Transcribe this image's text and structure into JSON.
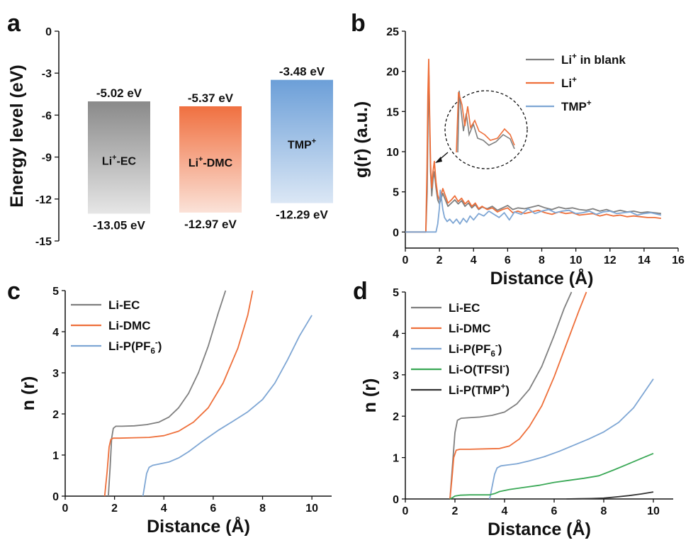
{
  "colors": {
    "gray": "#7f7f7f",
    "orange": "#ee6f3a",
    "blue": "#7ea6d4",
    "green": "#3aa856",
    "black": "#333333",
    "bar_gray": "#8a8a8a",
    "bar_orange": "#f07040",
    "bar_blue": "#6c9fd8"
  },
  "chart_data": [
    {
      "panel": "a",
      "type": "bar",
      "title": "",
      "ylabel": "Energy level (eV)",
      "ylim": [
        -15,
        0
      ],
      "yticks": [
        0,
        -3,
        -6,
        -9,
        -12,
        -15
      ],
      "ytick_labels": [
        "0",
        "-3",
        "-6",
        "-9",
        "-12",
        "-15"
      ],
      "bars": [
        {
          "name": "Li⁺-EC",
          "name_base": "Li",
          "name_sup": "+",
          "name_rest": "-EC",
          "top": -5.02,
          "bottom": -13.05,
          "top_label": "-5.02 eV",
          "bottom_label": "-13.05 eV",
          "color_key": "bar_gray"
        },
        {
          "name": "Li⁺-DMC",
          "name_base": "Li",
          "name_sup": "+",
          "name_rest": "-DMC",
          "top": -5.37,
          "bottom": -12.97,
          "top_label": "-5.37 eV",
          "bottom_label": "-12.97 eV",
          "color_key": "bar_orange"
        },
        {
          "name": "TMP⁺",
          "name_base": "TMP",
          "name_sup": "+",
          "name_rest": "",
          "top": -3.48,
          "bottom": -12.29,
          "top_label": "-3.48 eV",
          "bottom_label": "-12.29 eV",
          "color_key": "bar_blue"
        }
      ]
    },
    {
      "panel": "b",
      "type": "line",
      "xlabel": "Distance (Å)",
      "ylabel": "g(r) (a.u.)",
      "xlim": [
        0,
        16
      ],
      "ylim": [
        -2,
        25
      ],
      "xticks": [
        0,
        2,
        4,
        6,
        8,
        10,
        12,
        14,
        16
      ],
      "xtick_labels": [
        "0",
        "2",
        "4",
        "6",
        "8",
        "10",
        "12",
        "14",
        "16"
      ],
      "yticks": [
        0,
        5,
        10,
        15,
        20,
        25
      ],
      "ytick_labels": [
        "0",
        "5",
        "10",
        "15",
        "20",
        "25"
      ],
      "annotation": "zoom inset (dashed circle) of first-shell peaks",
      "series": [
        {
          "name": "Li⁺ in blank",
          "legend_base": "Li",
          "legend_sup": "+",
          "legend_rest": " in blank",
          "color_key": "gray",
          "x": [
            0,
            1.2,
            1.28,
            1.33,
            1.38,
            1.42,
            1.48,
            1.55,
            1.62,
            1.7,
            1.8,
            1.9,
            2.0,
            2.1,
            2.2,
            2.35,
            2.5,
            2.7,
            2.9,
            3.1,
            3.3,
            3.5,
            3.7,
            3.9,
            4.1,
            4.3,
            4.5,
            4.8,
            5.1,
            5.4,
            5.7,
            6.0,
            6.3,
            6.6,
            7.0,
            7.4,
            7.8,
            8.2,
            8.6,
            9.0,
            9.4,
            9.8,
            10.2,
            10.6,
            11.0,
            11.4,
            11.8,
            12.2,
            12.6,
            13.0,
            13.4,
            13.8,
            14.2,
            14.6,
            15.0
          ],
          "y": [
            0,
            0,
            5,
            14,
            19.5,
            14,
            7.5,
            4.5,
            6.5,
            7.5,
            5.5,
            4.0,
            3.5,
            4.2,
            4.8,
            4.0,
            3.2,
            3.6,
            4.0,
            3.5,
            3.9,
            3.2,
            3.6,
            3.0,
            3.4,
            2.8,
            3.1,
            2.9,
            3.2,
            2.7,
            3.0,
            3.3,
            2.8,
            3.0,
            2.9,
            3.1,
            3.3,
            3.0,
            2.8,
            3.1,
            2.9,
            3.0,
            2.8,
            2.7,
            2.9,
            2.6,
            2.8,
            2.5,
            2.7,
            2.5,
            2.6,
            2.4,
            2.5,
            2.4,
            2.3
          ]
        },
        {
          "name": "Li⁺",
          "legend_base": "Li",
          "legend_sup": "+",
          "legend_rest": "",
          "color_key": "orange",
          "x": [
            0,
            1.2,
            1.27,
            1.32,
            1.37,
            1.42,
            1.48,
            1.55,
            1.62,
            1.7,
            1.8,
            1.9,
            2.0,
            2.1,
            2.2,
            2.35,
            2.5,
            2.7,
            2.9,
            3.1,
            3.3,
            3.5,
            3.7,
            3.9,
            4.1,
            4.3,
            4.5,
            4.8,
            5.1,
            5.4,
            5.7,
            6.0,
            6.3,
            6.6,
            7.0,
            7.4,
            7.8,
            8.2,
            8.6,
            9.0,
            9.4,
            9.8,
            10.2,
            10.6,
            11.0,
            11.4,
            11.8,
            12.2,
            12.6,
            13.0,
            13.4,
            13.8,
            14.2,
            14.6,
            15.0
          ],
          "y": [
            0,
            0,
            8,
            17,
            21.5,
            15,
            8.5,
            5.5,
            7.5,
            8.8,
            6.2,
            4.6,
            4.0,
            4.6,
            5.4,
            4.5,
            3.6,
            4.0,
            4.5,
            3.8,
            4.2,
            3.5,
            3.9,
            3.2,
            3.6,
            2.9,
            3.2,
            2.8,
            3.0,
            2.5,
            2.8,
            3.0,
            2.4,
            2.6,
            2.3,
            2.5,
            2.7,
            2.4,
            2.2,
            2.5,
            2.3,
            2.4,
            2.1,
            2.2,
            2.3,
            2.0,
            2.2,
            2.0,
            2.1,
            1.9,
            2.0,
            1.9,
            1.8,
            1.8,
            1.7
          ]
        },
        {
          "name": "TMP⁺",
          "legend_base": "TMP",
          "legend_sup": "+",
          "legend_rest": "",
          "color_key": "blue",
          "x": [
            0,
            1.8,
            1.9,
            2.0,
            2.05,
            2.1,
            2.2,
            2.3,
            2.45,
            2.6,
            2.8,
            3.0,
            3.2,
            3.4,
            3.6,
            3.8,
            4.0,
            4.3,
            4.6,
            4.9,
            5.2,
            5.5,
            5.8,
            6.1,
            6.4,
            6.8,
            7.2,
            7.6,
            8.0,
            8.4,
            8.8,
            9.2,
            9.6,
            10.0,
            10.4,
            10.8,
            11.2,
            11.6,
            12.0,
            12.4,
            12.8,
            13.2,
            13.6,
            14.0,
            14.4,
            14.8,
            15.0
          ],
          "y": [
            0,
            0,
            1.0,
            3.0,
            5.2,
            4.5,
            2.8,
            1.8,
            1.3,
            1.6,
            1.1,
            1.6,
            1.0,
            1.7,
            1.2,
            2.0,
            1.5,
            2.3,
            2.0,
            2.6,
            2.2,
            1.8,
            2.4,
            1.5,
            2.5,
            2.2,
            2.9,
            2.3,
            2.6,
            2.8,
            2.4,
            2.6,
            2.7,
            2.3,
            2.4,
            2.6,
            2.2,
            2.5,
            2.6,
            2.3,
            2.4,
            2.5,
            2.1,
            2.3,
            2.4,
            2.2,
            2.1
          ]
        }
      ]
    },
    {
      "panel": "c",
      "type": "line",
      "xlabel": "Distance (Å)",
      "ylabel": "n (r)",
      "xlim": [
        0,
        10.8
      ],
      "ylim": [
        0,
        5
      ],
      "xticks": [
        0,
        2,
        4,
        6,
        8,
        10
      ],
      "xtick_labels": [
        "0",
        "2",
        "4",
        "6",
        "8",
        "10"
      ],
      "yticks": [
        0,
        1,
        2,
        3,
        4,
        5
      ],
      "ytick_labels": [
        "0",
        "1",
        "2",
        "3",
        "4",
        "5"
      ],
      "series": [
        {
          "name": "Li-EC",
          "legend_base": "Li-EC",
          "legend_sup": "",
          "legend_rest": "",
          "color_key": "gray",
          "x": [
            1.75,
            1.82,
            1.88,
            1.95,
            2.05,
            2.3,
            2.8,
            3.3,
            3.8,
            4.2,
            4.6,
            5.0,
            5.4,
            5.8,
            6.2,
            6.5
          ],
          "y": [
            0,
            0.7,
            1.4,
            1.65,
            1.7,
            1.7,
            1.71,
            1.74,
            1.8,
            1.92,
            2.15,
            2.5,
            3.0,
            3.65,
            4.45,
            5.0
          ]
        },
        {
          "name": "Li-DMC",
          "legend_base": "Li-DMC",
          "legend_sup": "",
          "legend_rest": "",
          "color_key": "orange",
          "x": [
            1.6,
            1.7,
            1.78,
            1.85,
            1.95,
            2.2,
            2.8,
            3.4,
            4.0,
            4.6,
            5.2,
            5.8,
            6.4,
            7.0,
            7.4,
            7.6
          ],
          "y": [
            0,
            0.6,
            1.2,
            1.38,
            1.41,
            1.41,
            1.42,
            1.43,
            1.47,
            1.58,
            1.8,
            2.15,
            2.75,
            3.6,
            4.4,
            5.0
          ]
        },
        {
          "name": "Li-P(PF₆⁻)",
          "legend_base": "Li-P(PF",
          "legend_sub": "6",
          "legend_sup": "-",
          "legend_rest": ")",
          "color_key": "blue",
          "x": [
            3.15,
            3.22,
            3.3,
            3.4,
            3.55,
            3.8,
            4.2,
            4.6,
            5.0,
            5.6,
            6.2,
            6.8,
            7.4,
            8.0,
            8.5,
            9.0,
            9.5,
            10.0
          ],
          "y": [
            0,
            0.25,
            0.55,
            0.7,
            0.75,
            0.78,
            0.83,
            0.93,
            1.08,
            1.35,
            1.6,
            1.82,
            2.05,
            2.35,
            2.75,
            3.3,
            3.9,
            4.4
          ]
        }
      ]
    },
    {
      "panel": "d",
      "type": "line",
      "xlabel": "Distance (Å)",
      "ylabel": "n (r)",
      "xlim": [
        0,
        10.8
      ],
      "ylim": [
        0,
        5
      ],
      "xticks": [
        0,
        2,
        4,
        6,
        8,
        10
      ],
      "xtick_labels": [
        "0",
        "2",
        "4",
        "6",
        "8",
        "10"
      ],
      "yticks": [
        0,
        1,
        2,
        3,
        4,
        5
      ],
      "ytick_labels": [
        "0",
        "1",
        "2",
        "3",
        "4",
        "5"
      ],
      "series": [
        {
          "name": "Li-EC",
          "legend_base": "Li-EC",
          "legend_sup": "",
          "legend_rest": "",
          "color_key": "gray",
          "x": [
            1.8,
            1.9,
            2.0,
            2.1,
            2.25,
            2.5,
            3.0,
            3.5,
            4.0,
            4.5,
            5.0,
            5.5,
            6.0,
            6.4,
            6.7
          ],
          "y": [
            0,
            0.8,
            1.6,
            1.9,
            1.95,
            1.96,
            1.98,
            2.02,
            2.1,
            2.3,
            2.65,
            3.2,
            3.95,
            4.6,
            5.0
          ]
        },
        {
          "name": "Li-DMC",
          "legend_base": "Li-DMC",
          "legend_sup": "",
          "legend_rest": "",
          "color_key": "orange",
          "x": [
            1.8,
            1.88,
            1.95,
            2.05,
            2.2,
            2.6,
            3.2,
            3.8,
            4.2,
            4.6,
            5.0,
            5.5,
            6.0,
            6.5,
            7.0,
            7.3
          ],
          "y": [
            0,
            0.5,
            1.0,
            1.18,
            1.2,
            1.2,
            1.21,
            1.22,
            1.28,
            1.45,
            1.75,
            2.25,
            2.95,
            3.75,
            4.55,
            5.0
          ]
        },
        {
          "name": "Li-P(PF₆⁻)",
          "legend_base": "Li-P(PF",
          "legend_sub": "6",
          "legend_sup": "-",
          "legend_rest": ")",
          "color_key": "blue",
          "x": [
            3.4,
            3.5,
            3.6,
            3.7,
            3.85,
            4.1,
            4.5,
            5.0,
            5.6,
            6.2,
            6.8,
            7.4,
            8.0,
            8.6,
            9.2,
            9.6,
            10.0
          ],
          "y": [
            0,
            0.3,
            0.6,
            0.75,
            0.8,
            0.82,
            0.85,
            0.92,
            1.02,
            1.15,
            1.3,
            1.45,
            1.62,
            1.85,
            2.2,
            2.55,
            2.9
          ]
        },
        {
          "name": "Li-O(TFSI⁻)",
          "legend_base": "Li-O(TFSI",
          "legend_sup": "-",
          "legend_rest": ")",
          "color_key": "green",
          "x": [
            1.8,
            1.9,
            2.0,
            2.2,
            2.6,
            3.0,
            3.4,
            3.6,
            3.8,
            4.2,
            4.8,
            5.4,
            6.0,
            6.6,
            7.2,
            7.8,
            8.4,
            9.0,
            9.6,
            10.0
          ],
          "y": [
            0,
            0.03,
            0.07,
            0.09,
            0.1,
            0.1,
            0.1,
            0.13,
            0.18,
            0.23,
            0.28,
            0.33,
            0.4,
            0.45,
            0.5,
            0.56,
            0.7,
            0.85,
            1.0,
            1.1
          ]
        },
        {
          "name": "Li-P(TMP⁺)",
          "legend_base": "Li-P(TMP",
          "legend_sup": "+",
          "legend_rest": ")",
          "color_key": "black",
          "x": [
            6.5,
            7.0,
            7.5,
            8.0,
            8.5,
            9.0,
            9.5,
            10.0
          ],
          "y": [
            0,
            0.005,
            0.01,
            0.02,
            0.05,
            0.08,
            0.12,
            0.17
          ]
        }
      ]
    }
  ]
}
